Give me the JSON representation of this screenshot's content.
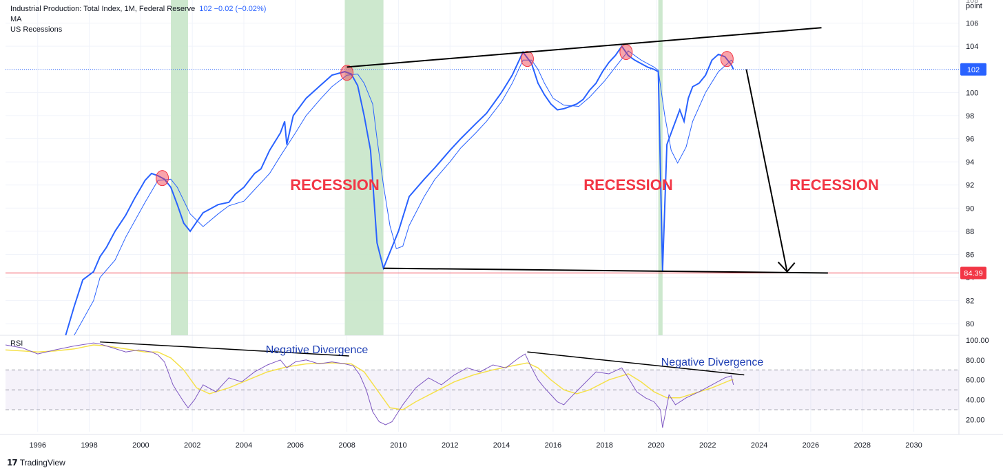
{
  "legend": {
    "series_title": "Industrial Production: Total Index, 1M, Federal Reserve",
    "series_value": "102 −0.02 (−0.02%)",
    "ma_label": "MA",
    "recessions_label": "US Recessions"
  },
  "unit_label": "point",
  "brand": "TradingView",
  "colors": {
    "price": "#2962ff",
    "ma": "#2962ff",
    "recession": "#c8e6c9",
    "support": "#f23645",
    "rsi": "#7e57c2",
    "rsi_ma": "#f5e14a",
    "annotation": "#f23645"
  },
  "chart_data": [
    {
      "type": "line",
      "x_type": "date",
      "xlim": [
        "1994-10",
        "2031-10"
      ],
      "ylim": [
        79,
        108
      ],
      "x_ticks": [
        "1996",
        "1998",
        "2000",
        "2002",
        "2004",
        "2006",
        "2008",
        "2010",
        "2012",
        "2014",
        "2016",
        "2018",
        "2020",
        "2022",
        "2024",
        "2026",
        "2028",
        "2030"
      ],
      "y_ticks": [
        80,
        82,
        84,
        86,
        88,
        90,
        92,
        94,
        96,
        98,
        100,
        102,
        104,
        106
      ],
      "y_tick_labels": [
        "80",
        "82",
        "84",
        "86",
        "88",
        "90",
        "92",
        "94",
        "96",
        "98",
        "100",
        "",
        "104",
        "106"
      ],
      "last_value_label": "102",
      "support_label": "84.39",
      "support_level": 84.39,
      "recession_bands": [
        [
          "2001-03",
          "2001-11"
        ],
        [
          "2007-12",
          "2009-06"
        ],
        [
          "2020-02",
          "2020-04"
        ]
      ],
      "series": [
        {
          "name": "Industrial Production: Total Index",
          "x": [
            "1997-02",
            "1997-06",
            "1997-10",
            "1998-03",
            "1998-06",
            "1998-09",
            "1999-01",
            "1999-06",
            "1999-10",
            "2000-03",
            "2000-06",
            "2000-09",
            "2000-12",
            "2001-03",
            "2001-06",
            "2001-09",
            "2001-12",
            "2002-03",
            "2002-06",
            "2002-09",
            "2003-01",
            "2003-06",
            "2003-09",
            "2004-01",
            "2004-06",
            "2004-09",
            "2005-01",
            "2005-06",
            "2005-08",
            "2005-09",
            "2005-12",
            "2006-06",
            "2006-12",
            "2007-06",
            "2007-12",
            "2008-03",
            "2008-06",
            "2008-09",
            "2008-12",
            "2009-03",
            "2009-06",
            "2010-01",
            "2010-06",
            "2011-01",
            "2011-06",
            "2012-01",
            "2012-06",
            "2013-01",
            "2013-06",
            "2014-01",
            "2014-06",
            "2014-11",
            "2015-03",
            "2015-06",
            "2015-09",
            "2015-12",
            "2016-03",
            "2016-06",
            "2016-09",
            "2016-12",
            "2017-03",
            "2017-06",
            "2017-09",
            "2017-12",
            "2018-03",
            "2018-06",
            "2018-09",
            "2018-12",
            "2019-03",
            "2019-06",
            "2019-09",
            "2019-12",
            "2020-02",
            "2020-04",
            "2020-06",
            "2020-09",
            "2020-12",
            "2021-02",
            "2021-04",
            "2021-06",
            "2021-09",
            "2021-12",
            "2022-03",
            "2022-06",
            "2022-09",
            "2022-12",
            "2023-01"
          ],
          "y": [
            79.0,
            81.5,
            83.8,
            84.5,
            85.8,
            86.6,
            88.0,
            89.4,
            90.8,
            92.4,
            93.0,
            92.8,
            92.5,
            91.8,
            90.3,
            88.7,
            88.0,
            88.8,
            89.6,
            89.9,
            90.3,
            90.5,
            91.2,
            91.8,
            93.0,
            93.4,
            95.0,
            96.5,
            97.5,
            95.5,
            98.0,
            99.5,
            100.5,
            101.5,
            101.8,
            101.6,
            100.6,
            98.0,
            95.0,
            87.0,
            84.8,
            88.0,
            91.0,
            92.5,
            93.5,
            95.0,
            96.0,
            97.3,
            98.2,
            100.0,
            101.5,
            103.5,
            102.5,
            100.8,
            99.8,
            99.0,
            98.5,
            98.6,
            98.8,
            99.0,
            99.4,
            100.2,
            100.8,
            101.8,
            102.6,
            103.2,
            104.0,
            103.2,
            102.8,
            102.5,
            102.2,
            102.0,
            101.8,
            84.6,
            95.5,
            97.0,
            98.5,
            97.5,
            99.5,
            100.5,
            100.8,
            101.5,
            102.8,
            103.3,
            103.1,
            102.4,
            102.0
          ]
        },
        {
          "name": "MA",
          "x": [
            "1997-06",
            "1998-03",
            "1998-06",
            "1999-01",
            "1999-06",
            "2000-03",
            "2000-09",
            "2001-03",
            "2001-06",
            "2001-12",
            "2002-06",
            "2003-01",
            "2003-06",
            "2004-01",
            "2004-06",
            "2005-01",
            "2005-06",
            "2006-01",
            "2006-06",
            "2007-01",
            "2007-06",
            "2008-01",
            "2008-06",
            "2008-09",
            "2009-01",
            "2009-03",
            "2009-06",
            "2009-09",
            "2009-12",
            "2010-03",
            "2010-06",
            "2011-01",
            "2011-06",
            "2012-01",
            "2012-06",
            "2013-01",
            "2013-06",
            "2014-01",
            "2014-06",
            "2014-11",
            "2015-03",
            "2015-06",
            "2015-09",
            "2016-01",
            "2016-06",
            "2017-01",
            "2017-06",
            "2018-01",
            "2018-06",
            "2018-12",
            "2019-06",
            "2019-12",
            "2020-02",
            "2020-05",
            "2020-08",
            "2020-11",
            "2021-03",
            "2021-06",
            "2021-12",
            "2022-06",
            "2022-12",
            "2023-01"
          ],
          "y": [
            79.0,
            82.0,
            84.0,
            85.5,
            87.5,
            90.5,
            92.4,
            92.5,
            91.8,
            89.5,
            88.4,
            89.5,
            90.2,
            90.6,
            91.6,
            93.0,
            94.5,
            96.5,
            98.0,
            99.5,
            100.5,
            101.5,
            101.6,
            100.8,
            99.0,
            96.0,
            92.0,
            88.5,
            86.5,
            86.7,
            88.5,
            91.0,
            92.5,
            94.0,
            95.2,
            96.5,
            97.5,
            99.2,
            100.8,
            102.8,
            102.8,
            102.0,
            100.8,
            99.5,
            98.9,
            98.8,
            99.6,
            101.0,
            102.2,
            103.6,
            102.8,
            102.2,
            101.9,
            98.0,
            95.0,
            93.9,
            95.3,
            97.5,
            100.0,
            101.8,
            102.8,
            102.6
          ]
        }
      ],
      "annotations": [
        "RECESSION",
        "RECESSION",
        "RECESSION"
      ],
      "marked_peaks": [
        [
          "2000-11",
          92.6
        ],
        [
          "2008-01",
          101.7
        ],
        [
          "2015-01",
          102.9
        ],
        [
          "2018-11",
          103.5
        ],
        [
          "2022-10",
          102.9
        ]
      ],
      "trendlines": [
        {
          "from": [
            "2008-01",
            102.2
          ],
          "to": [
            "2026-06",
            105.6
          ]
        },
        {
          "from": [
            "2009-06",
            84.8
          ],
          "to": [
            "2026-09",
            84.39
          ]
        }
      ],
      "arrow": {
        "from": [
          "2023-07",
          102.0
        ],
        "to": [
          "2025-02",
          84.5
        ]
      }
    },
    {
      "type": "line",
      "x_type": "date",
      "xlim": [
        "1994-10",
        "2031-10"
      ],
      "ylim": [
        8,
        104
      ],
      "title": "RSI",
      "y_ticks": [
        20,
        40,
        60,
        80,
        100
      ],
      "y_tick_labels": [
        "20.00",
        "40.00",
        "60.00",
        "80.00",
        "100.00"
      ],
      "bands": [
        30,
        50,
        70
      ],
      "annotations": [
        "Negative Divergence",
        "Negative Divergence"
      ],
      "series": [
        {
          "name": "RSI",
          "x": [
            "1994-10",
            "1995-06",
            "1996-01",
            "1996-09",
            "1997-06",
            "1998-03",
            "1998-06",
            "1998-12",
            "1999-06",
            "1999-12",
            "2000-06",
            "2000-09",
            "2000-12",
            "2001-04",
            "2001-06",
            "2001-09",
            "2001-11",
            "2002-02",
            "2002-06",
            "2002-12",
            "2003-06",
            "2003-12",
            "2004-06",
            "2004-12",
            "2005-06",
            "2005-09",
            "2006-01",
            "2006-06",
            "2006-12",
            "2007-06",
            "2007-12",
            "2008-04",
            "2008-07",
            "2008-10",
            "2009-01",
            "2009-04",
            "2009-07",
            "2009-10",
            "2010-03",
            "2010-09",
            "2011-03",
            "2011-09",
            "2012-03",
            "2012-09",
            "2013-03",
            "2013-09",
            "2014-03",
            "2014-09",
            "2014-12",
            "2015-03",
            "2015-06",
            "2015-09",
            "2015-12",
            "2016-03",
            "2016-06",
            "2016-09",
            "2017-03",
            "2017-09",
            "2018-03",
            "2018-09",
            "2018-12",
            "2019-04",
            "2019-08",
            "2019-12",
            "2020-03",
            "2020-04",
            "2020-07",
            "2020-10",
            "2021-03",
            "2021-09",
            "2022-03",
            "2022-09",
            "2022-12",
            "2023-01"
          ],
          "y": [
            95,
            92,
            86,
            90,
            94,
            97,
            96,
            92,
            88,
            90,
            88,
            85,
            78,
            55,
            48,
            38,
            32,
            40,
            55,
            48,
            62,
            58,
            68,
            75,
            80,
            72,
            78,
            80,
            76,
            78,
            76,
            74,
            65,
            50,
            28,
            18,
            15,
            18,
            35,
            52,
            62,
            55,
            65,
            72,
            68,
            75,
            72,
            82,
            86,
            72,
            60,
            52,
            45,
            38,
            35,
            42,
            55,
            68,
            66,
            72,
            62,
            48,
            42,
            38,
            30,
            12,
            45,
            35,
            42,
            48,
            55,
            62,
            64,
            55
          ]
        },
        {
          "name": "RSI-based MA",
          "x": [
            "1994-10",
            "1995-06",
            "1996-01",
            "1996-09",
            "1997-06",
            "1998-03",
            "1998-09",
            "1999-06",
            "2000-03",
            "2000-09",
            "2001-03",
            "2001-09",
            "2002-03",
            "2002-09",
            "2003-06",
            "2004-03",
            "2004-12",
            "2005-09",
            "2006-06",
            "2007-06",
            "2008-03",
            "2008-09",
            "2009-03",
            "2009-09",
            "2010-03",
            "2010-09",
            "2011-06",
            "2012-03",
            "2012-12",
            "2013-09",
            "2014-06",
            "2015-01",
            "2015-06",
            "2015-12",
            "2016-06",
            "2016-12",
            "2017-06",
            "2018-03",
            "2018-12",
            "2019-06",
            "2019-12",
            "2020-06",
            "2020-12",
            "2021-06",
            "2022-03",
            "2022-12",
            "2023-01"
          ],
          "y": [
            90,
            89,
            88,
            89,
            91,
            95,
            94,
            91,
            88,
            88,
            82,
            70,
            52,
            46,
            52,
            60,
            68,
            73,
            76,
            77,
            76,
            68,
            50,
            32,
            30,
            38,
            48,
            58,
            65,
            70,
            74,
            77,
            72,
            60,
            50,
            46,
            50,
            60,
            66,
            58,
            48,
            42,
            42,
            46,
            52,
            60,
            60
          ]
        }
      ],
      "divergence_lines": [
        {
          "from": [
            "1998-06",
            98
          ],
          "to": [
            "2008-02",
            84
          ]
        },
        {
          "from": [
            "2015-01",
            88
          ],
          "to": [
            "2023-06",
            65
          ]
        }
      ]
    }
  ]
}
